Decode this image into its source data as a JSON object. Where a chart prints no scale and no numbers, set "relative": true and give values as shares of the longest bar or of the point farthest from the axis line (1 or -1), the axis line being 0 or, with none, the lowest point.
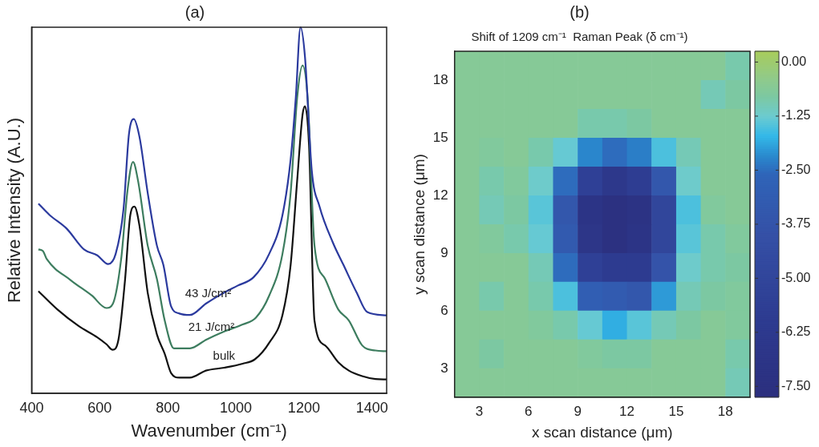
{
  "chart_data": [
    {
      "type": "line",
      "title": "(a)",
      "xlabel": "Wavenumber (cm⁻¹)",
      "ylabel": "Relative Intensity (A.U.)",
      "relative": true,
      "xlim": [
        400,
        1443
      ],
      "xticks": [
        400,
        600,
        800,
        1000,
        1200,
        1400
      ],
      "series": [
        {
          "name": "43 J/cm²",
          "color": "#2b3a9e",
          "x": [
            420,
            453,
            503,
            554,
            593,
            625,
            647,
            670,
            686,
            700,
            717,
            741,
            768,
            787,
            810,
            834,
            865,
            912,
            958,
            1005,
            1052,
            1098,
            1137,
            1161,
            1176,
            1190,
            1203,
            1223,
            1246,
            1285,
            1316,
            1355,
            1386,
            1443
          ],
          "values": [
            0.518,
            0.487,
            0.45,
            0.393,
            0.377,
            0.353,
            0.381,
            0.503,
            0.708,
            0.749,
            0.7,
            0.548,
            0.404,
            0.351,
            0.237,
            0.218,
            0.214,
            0.245,
            0.271,
            0.294,
            0.317,
            0.381,
            0.487,
            0.639,
            0.806,
            1.0,
            0.92,
            0.609,
            0.51,
            0.412,
            0.351,
            0.275,
            0.222,
            0.213
          ]
        },
        {
          "name": "21 J/cm²",
          "color": "#3d7d5f",
          "x": [
            420,
            433,
            445,
            515,
            577,
            620,
            639,
            663,
            682,
            698,
            713,
            741,
            768,
            791,
            818,
            865,
            912,
            966,
            1020,
            1059,
            1098,
            1137,
            1161,
            1180,
            1196,
            1211,
            1231,
            1262,
            1301,
            1332,
            1371,
            1410,
            1443
          ],
          "values": [
            0.393,
            0.389,
            0.366,
            0.309,
            0.267,
            0.233,
            0.245,
            0.366,
            0.556,
            0.632,
            0.579,
            0.404,
            0.313,
            0.199,
            0.123,
            0.123,
            0.146,
            0.169,
            0.188,
            0.207,
            0.267,
            0.381,
            0.548,
            0.806,
            0.896,
            0.806,
            0.404,
            0.313,
            0.229,
            0.199,
            0.131,
            0.117,
            0.115
          ]
        },
        {
          "name": "bulk",
          "color": "#111111",
          "x": [
            420,
            476,
            538,
            593,
            620,
            638,
            655,
            674,
            690,
            702,
            717,
            741,
            768,
            791,
            810,
            834,
            865,
            912,
            966,
            1020,
            1056,
            1098,
            1137,
            1161,
            1180,
            1196,
            1203,
            1215,
            1231,
            1262,
            1301,
            1332,
            1371,
            1410,
            1443
          ],
          "values": [
            0.279,
            0.229,
            0.184,
            0.153,
            0.134,
            0.119,
            0.146,
            0.305,
            0.487,
            0.51,
            0.457,
            0.275,
            0.161,
            0.108,
            0.055,
            0.043,
            0.043,
            0.062,
            0.07,
            0.081,
            0.093,
            0.138,
            0.214,
            0.351,
            0.579,
            0.761,
            0.784,
            0.677,
            0.199,
            0.131,
            0.085,
            0.062,
            0.047,
            0.039,
            0.038
          ]
        }
      ]
    },
    {
      "type": "heatmap",
      "title": "(b)",
      "subtitle": "Shift of 1209 cm⁻¹  Raman Peak (δ cm⁻¹)",
      "xlabel": "x scan distance (μm)",
      "ylabel": "y scan distance (μm)",
      "xlim": [
        1.5,
        19.5
      ],
      "xticks": [
        3,
        6,
        9,
        12,
        15,
        18
      ],
      "ylim": [
        1.5,
        19.5
      ],
      "yticks": [
        3,
        6,
        9,
        12,
        15,
        18
      ],
      "clim": [
        -7.75,
        0.25
      ],
      "cticks": [
        {
          "value": 0,
          "label": "0.00"
        },
        {
          "value": -1.25,
          "label": "-1.25"
        },
        {
          "value": -2.5,
          "label": "-2.50"
        },
        {
          "value": -3.75,
          "label": "-3.75"
        },
        {
          "value": -5,
          "label": "-5.00"
        },
        {
          "value": -6.25,
          "label": "-6.25"
        },
        {
          "value": -7.5,
          "label": "-7.50"
        }
      ],
      "cells": [
        [
          -0.6,
          -0.6,
          -0.6,
          -0.6,
          -0.6,
          -0.6,
          -0.6,
          -0.6,
          -0.6,
          -0.6,
          -0.6,
          -0.9
        ],
        [
          -0.6,
          -0.6,
          -0.6,
          -0.6,
          -0.6,
          -0.6,
          -0.6,
          -0.6,
          -0.6,
          -0.6,
          -1.0,
          -0.8
        ],
        [
          -0.6,
          -0.6,
          -0.6,
          -0.6,
          -0.6,
          -0.9,
          -0.9,
          -0.8,
          -0.6,
          -0.6,
          -0.6,
          -0.6
        ],
        [
          -0.6,
          -0.7,
          -0.6,
          -0.9,
          -1.3,
          -2.2,
          -2.5,
          -2.3,
          -1.5,
          -1.0,
          -0.6,
          -0.6
        ],
        [
          -0.6,
          -0.9,
          -0.7,
          -1.2,
          -2.5,
          -5.5,
          -6.5,
          -5.8,
          -3.5,
          -1.2,
          -0.6,
          -0.6
        ],
        [
          -0.6,
          -1.0,
          -0.8,
          -1.4,
          -3.5,
          -7.0,
          -7.5,
          -7.2,
          -5.0,
          -1.5,
          -0.7,
          -0.6
        ],
        [
          -0.6,
          -0.7,
          -0.9,
          -1.3,
          -3.3,
          -6.8,
          -7.5,
          -7.0,
          -5.0,
          -1.4,
          -0.9,
          -0.7
        ],
        [
          -0.6,
          -0.6,
          -0.6,
          -1.0,
          -2.5,
          -5.5,
          -6.0,
          -6.0,
          -3.8,
          -1.2,
          -0.9,
          -0.8
        ],
        [
          -0.6,
          -0.9,
          -0.6,
          -0.9,
          -1.5,
          -3.0,
          -3.2,
          -3.5,
          -2.0,
          -1.0,
          -0.8,
          -0.7
        ],
        [
          -0.6,
          -0.6,
          -0.6,
          -0.7,
          -0.9,
          -1.3,
          -1.8,
          -1.4,
          -1.0,
          -0.8,
          -0.6,
          -0.7
        ],
        [
          -0.6,
          -0.8,
          -0.6,
          -0.6,
          -0.6,
          -0.7,
          -0.8,
          -0.8,
          -0.6,
          -0.6,
          -0.6,
          -0.9
        ],
        [
          -0.6,
          -0.6,
          -0.6,
          -0.6,
          -0.6,
          -0.6,
          -0.6,
          -0.6,
          -0.6,
          -0.6,
          -0.6,
          -1.0
        ]
      ]
    }
  ]
}
